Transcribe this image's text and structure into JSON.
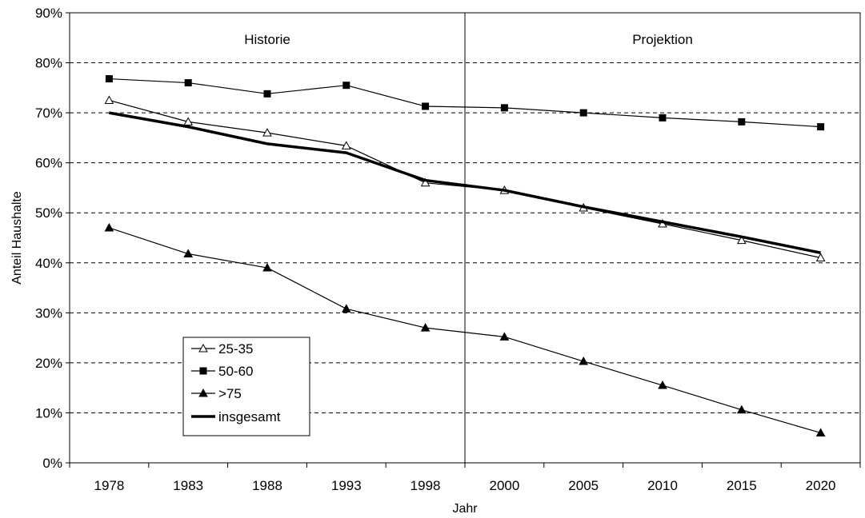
{
  "chart_data": {
    "type": "line",
    "xlabel": "Jahr",
    "ylabel": "Anteil Haushalte",
    "categories": [
      "1978",
      "1983",
      "1988",
      "1993",
      "1998",
      "2000",
      "2005",
      "2010",
      "2015",
      "2020"
    ],
    "ylim": [
      0,
      90
    ],
    "yticks": [
      {
        "value": 0,
        "label": "0%"
      },
      {
        "value": 10,
        "label": "10%"
      },
      {
        "value": 20,
        "label": "20%"
      },
      {
        "value": 30,
        "label": "30%"
      },
      {
        "value": 40,
        "label": "40%"
      },
      {
        "value": 50,
        "label": "50%"
      },
      {
        "value": 60,
        "label": "60%"
      },
      {
        "value": 70,
        "label": "70%"
      },
      {
        "value": 80,
        "label": "80%"
      },
      {
        "value": 90,
        "label": "90%"
      }
    ],
    "grid": "horizontal dashed",
    "legend_position": "bottom-left",
    "regions": [
      {
        "label": "Historie"
      },
      {
        "label": "Projektion"
      }
    ],
    "series": [
      {
        "name": "25-35",
        "marker": "open-triangle",
        "values": [
          72.5,
          68.2,
          66.0,
          63.4,
          56.0,
          54.5,
          51.0,
          47.8,
          44.5,
          41.0
        ]
      },
      {
        "name": "50-60",
        "marker": "filled-square",
        "values": [
          76.8,
          76.0,
          73.8,
          75.5,
          71.3,
          71.0,
          70.0,
          69.0,
          68.2,
          67.2
        ]
      },
      {
        "name": ">75",
        "marker": "filled-triangle",
        "values": [
          47.0,
          41.8,
          39.0,
          30.8,
          27.0,
          25.2,
          20.3,
          15.5,
          10.6,
          6.0
        ]
      },
      {
        "name": "insgesamt",
        "marker": "none",
        "values": [
          70.0,
          67.2,
          63.8,
          62.0,
          56.5,
          54.5,
          51.2,
          48.2,
          45.2,
          42.0
        ]
      }
    ],
    "colors": {
      "line": "#000000",
      "grid": "#000000",
      "background": "#ffffff"
    }
  }
}
